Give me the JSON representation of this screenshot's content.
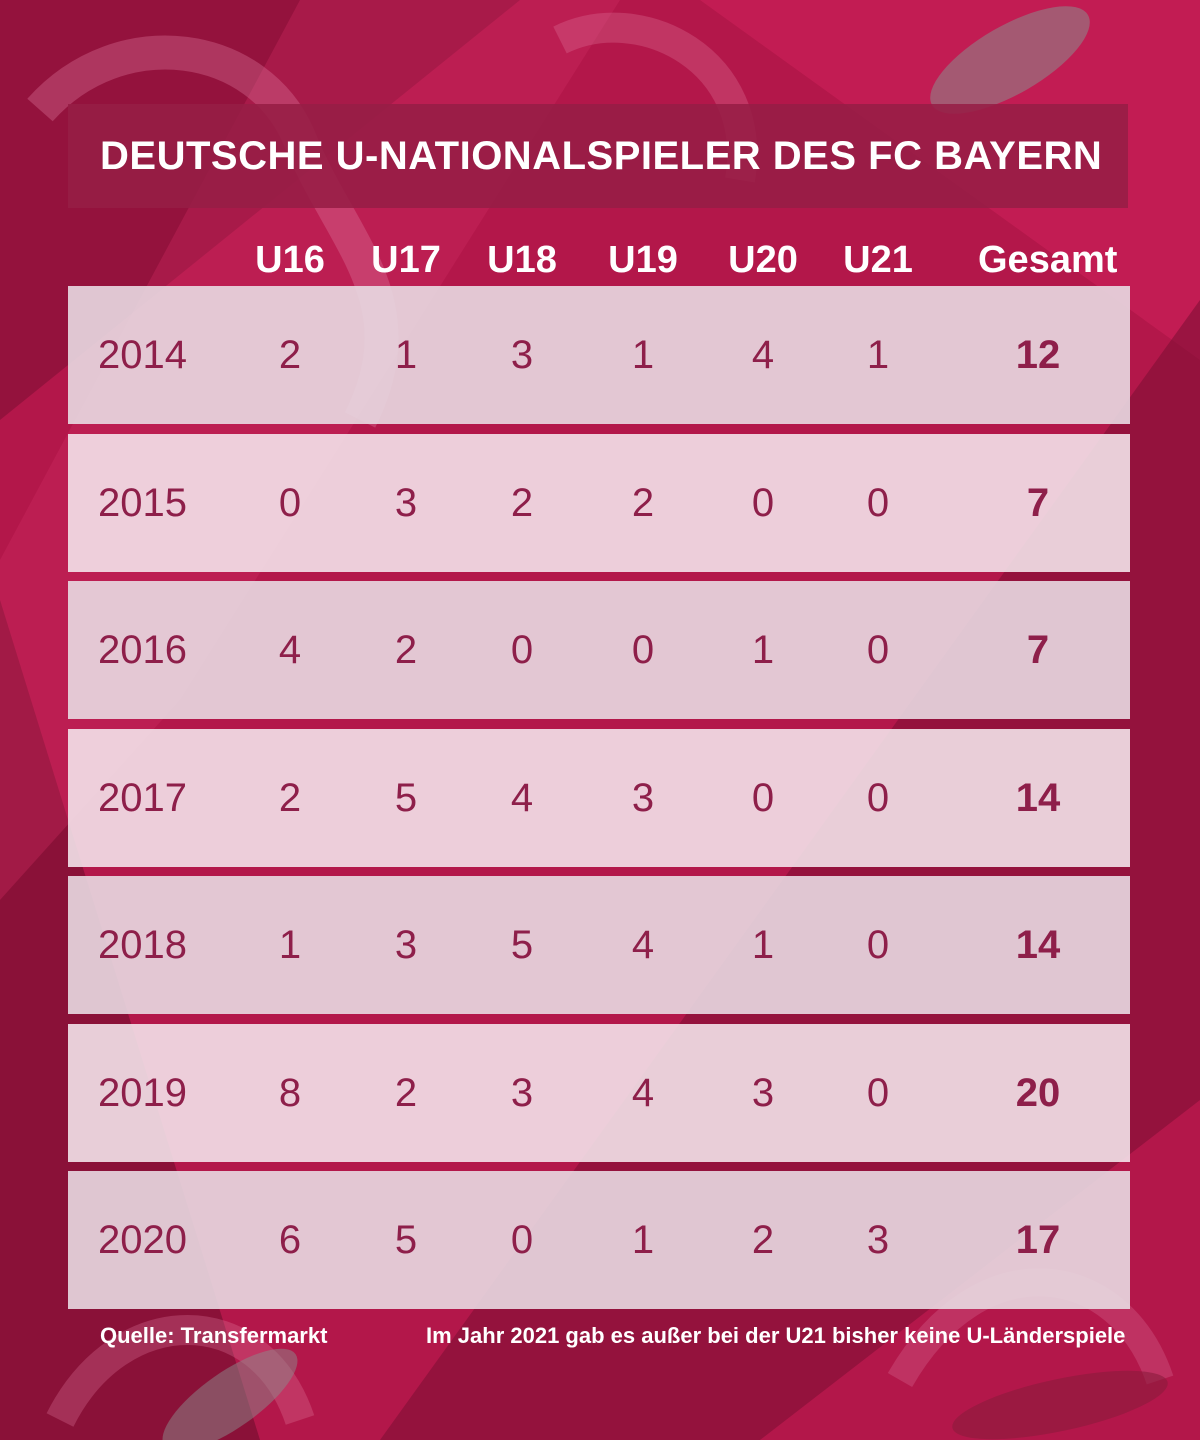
{
  "chart_data": {
    "type": "table",
    "title": "DEUTSCHE U-NATIONALSPIELER DES FC BAYERN",
    "columns": [
      "U16",
      "U17",
      "U18",
      "U19",
      "U20",
      "U21",
      "Gesamt"
    ],
    "rows": [
      {
        "year": "2014",
        "values": [
          2,
          1,
          3,
          1,
          4,
          1
        ],
        "total": 12
      },
      {
        "year": "2015",
        "values": [
          0,
          3,
          2,
          2,
          0,
          0
        ],
        "total": 7
      },
      {
        "year": "2016",
        "values": [
          4,
          2,
          0,
          0,
          1,
          0
        ],
        "total": 7
      },
      {
        "year": "2017",
        "values": [
          2,
          5,
          4,
          3,
          0,
          0
        ],
        "total": 14
      },
      {
        "year": "2018",
        "values": [
          1,
          3,
          5,
          4,
          1,
          0
        ],
        "total": 14
      },
      {
        "year": "2019",
        "values": [
          8,
          2,
          3,
          4,
          3,
          0
        ],
        "total": 20
      },
      {
        "year": "2020",
        "values": [
          6,
          5,
          0,
          1,
          2,
          3
        ],
        "total": 17
      }
    ]
  },
  "footer": {
    "source": "Quelle: Transfermarkt",
    "note": "Im Jahr 2021 gab es außer bei der U21 bisher keine U-Länderspiele"
  },
  "colors": {
    "background": "#b3174a",
    "title_bar": "#961e46",
    "row_light": "#f5e8ee",
    "row_dark": "#e8dae2",
    "value_text": "#8e1f4a",
    "header_text": "#ffffff"
  }
}
